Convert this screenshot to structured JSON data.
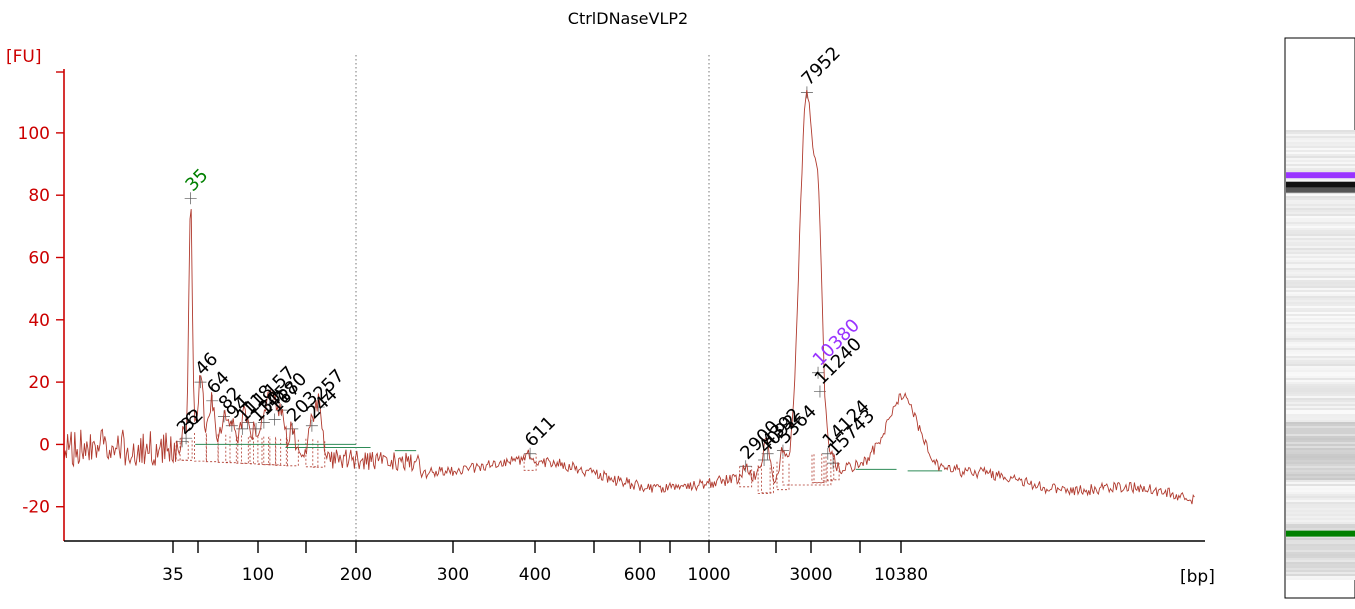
{
  "chart_data": {
    "type": "line",
    "title": "CtrlDNaseVLP2",
    "ylabel": "[FU]",
    "xlabel": "[bp]",
    "ylim": [
      -31,
      125
    ],
    "y_ticks": [
      -20,
      0,
      20,
      40,
      60,
      80,
      100
    ],
    "x_tick_labels": [
      "35",
      "100",
      "200",
      "300",
      "400",
      "600",
      "1000",
      "3000",
      "10380"
    ],
    "colors": {
      "axis": "#cc0000",
      "trace": "#b03a2e",
      "marker": "#008000",
      "upper_marker": "#9933ff",
      "baseline": "#2e8b57"
    },
    "peaks": [
      {
        "label": "26",
        "x": 42,
        "y": 1,
        "color": "#000000"
      },
      {
        "label": "32",
        "x": 45,
        "y": 2,
        "color": "#000000"
      },
      {
        "label": "35",
        "x": 48.5,
        "y": 79,
        "color": "#008000"
      },
      {
        "label": "46",
        "x": 56,
        "y": 20,
        "color": "#000000"
      },
      {
        "label": "64",
        "x": 65,
        "y": 14,
        "color": "#000000"
      },
      {
        "label": "82",
        "x": 74,
        "y": 9,
        "color": "#000000"
      },
      {
        "label": "94",
        "x": 80,
        "y": 6,
        "color": "#000000"
      },
      {
        "label": "111",
        "x": 88,
        "y": 5,
        "color": "#000000"
      },
      {
        "label": "118",
        "x": 92,
        "y": 7,
        "color": "#000000"
      },
      {
        "label": "130",
        "x": 98.5,
        "y": 5,
        "color": "#000000"
      },
      {
        "label": "145",
        "x": 106,
        "y": 7,
        "color": "#000000"
      },
      {
        "label": "157",
        "x": 112,
        "y": 13,
        "color": "#000000"
      },
      {
        "label": "167",
        "x": 117,
        "y": 8,
        "color": "#000000"
      },
      {
        "label": "180",
        "x": 124,
        "y": 11,
        "color": "#000000"
      },
      {
        "label": "203",
        "x": 135,
        "y": 5,
        "color": "#000000"
      },
      {
        "label": "244",
        "x": 155,
        "y": 6,
        "color": "#000000"
      },
      {
        "label": "257",
        "x": 162,
        "y": 12,
        "color": "#000000"
      },
      {
        "label": "611",
        "x": 394,
        "y": -3,
        "color": "#000000"
      },
      {
        "label": "2900",
        "x": 1720,
        "y": -7,
        "color": "#000000"
      },
      {
        "label": "4092",
        "x": 2080,
        "y": -5,
        "color": "#000000"
      },
      {
        "label": "4392",
        "x": 2150,
        "y": -3,
        "color": "#000000"
      },
      {
        "label": "5364",
        "x": 2450,
        "y": -2,
        "color": "#000000"
      },
      {
        "label": "7952",
        "x": 2920,
        "y": 113,
        "color": "#000000"
      },
      {
        "label": "10380",
        "x": 3440,
        "y": 23,
        "color": "#9933ff"
      },
      {
        "label": "11240",
        "x": 3560,
        "y": 17,
        "color": "#000000"
      },
      {
        "label": "14124",
        "x": 4050,
        "y": -3,
        "color": "#000000"
      },
      {
        "label": "15743",
        "x": 4380,
        "y": -6,
        "color": "#000000"
      }
    ],
    "gel_bands": [
      {
        "position": 0.245,
        "color": "#9933ff",
        "name": "upper-marker"
      },
      {
        "position": 0.262,
        "color": "#111111",
        "name": "main-band"
      },
      {
        "position": 0.885,
        "color": "#008000",
        "name": "lower-marker"
      }
    ]
  }
}
